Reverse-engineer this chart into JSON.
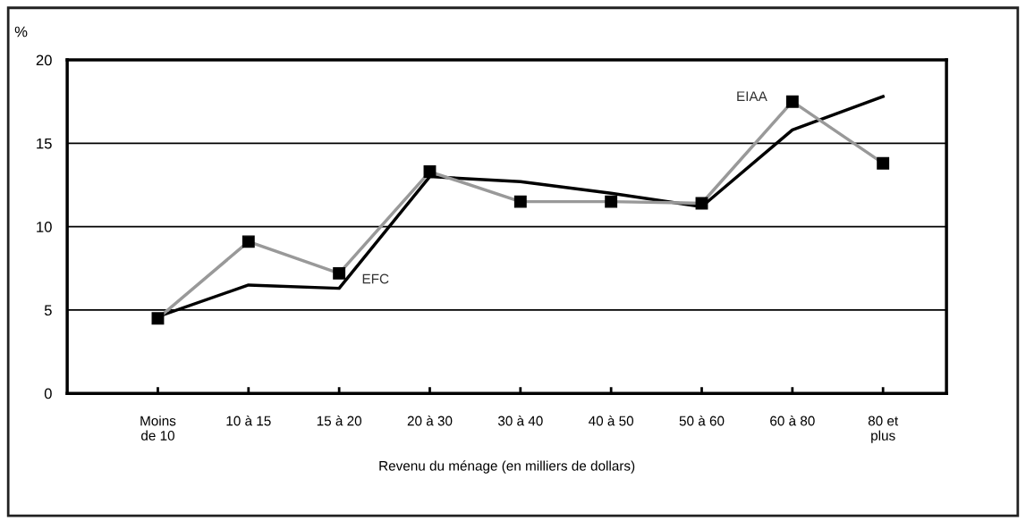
{
  "chart_data": {
    "type": "line",
    "ylabel": "%",
    "xlabel": "Revenu du ménage (en milliers de dollars)",
    "categories": [
      "Moins\nde 10",
      "10 à 15",
      "15 à 20",
      "20 à 30",
      "30 à 40",
      "40 à 50",
      "50 à 60",
      "60 à 80",
      "80 et\nplus"
    ],
    "series": [
      {
        "name": "EFC",
        "color": "#000000",
        "marker": "none",
        "values": [
          4.6,
          6.5,
          6.3,
          13.0,
          12.7,
          12.0,
          11.2,
          15.8,
          17.8
        ]
      },
      {
        "name": "EIAA",
        "color": "#999999",
        "marker": "square",
        "values": [
          4.5,
          9.1,
          7.2,
          13.3,
          11.5,
          11.5,
          11.4,
          17.5,
          13.8
        ]
      }
    ],
    "ylim": [
      0,
      20
    ],
    "yticks": [
      0,
      5,
      10,
      15,
      20
    ],
    "grid": "y",
    "legend": false,
    "line_style": "solid"
  }
}
